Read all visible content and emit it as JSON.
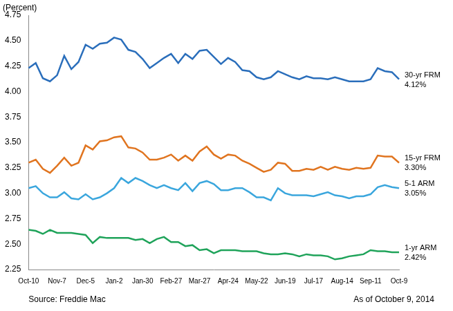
{
  "chart_data": {
    "type": "line",
    "y_label": "(Percent)",
    "annotations": [
      "Source: Freddie Mac",
      "As of October 9, 2014"
    ],
    "categories": [
      "Oct-10",
      null,
      null,
      null,
      "Nov-7",
      null,
      null,
      null,
      "Dec-5",
      null,
      null,
      null,
      "Jan-2",
      null,
      null,
      null,
      "Jan-30",
      null,
      null,
      null,
      "Feb-27",
      null,
      null,
      null,
      "Mar-27",
      null,
      null,
      null,
      "Apr-24",
      null,
      null,
      null,
      "May-22",
      null,
      null,
      null,
      "Jun-19",
      null,
      null,
      null,
      "Jul-17",
      null,
      null,
      null,
      "Aug-14",
      null,
      null,
      null,
      "Sep-11",
      null,
      null,
      null,
      "Oct-9"
    ],
    "series": [
      {
        "name": "30-yr FRM",
        "color": "#2a6ebb",
        "values": [
          4.23,
          4.28,
          4.13,
          4.1,
          4.16,
          4.35,
          4.22,
          4.29,
          4.46,
          4.42,
          4.47,
          4.48,
          4.53,
          4.51,
          4.41,
          4.39,
          4.32,
          4.23,
          4.28,
          4.33,
          4.37,
          4.28,
          4.37,
          4.32,
          4.4,
          4.41,
          4.34,
          4.27,
          4.33,
          4.29,
          4.21,
          4.2,
          4.14,
          4.12,
          4.14,
          4.2,
          4.17,
          4.14,
          4.12,
          4.15,
          4.13,
          4.13,
          4.12,
          4.14,
          4.12,
          4.1,
          4.1,
          4.1,
          4.12,
          4.23,
          4.2,
          4.19,
          4.12
        ],
        "value_labels": [
          null,
          null,
          null,
          null,
          null,
          null,
          null,
          null,
          null,
          null,
          null,
          null,
          null,
          null,
          null,
          null,
          null,
          null,
          null,
          null,
          null,
          null,
          null,
          null,
          null,
          null,
          null,
          null,
          null,
          null,
          null,
          null,
          null,
          null,
          null,
          null,
          null,
          null,
          null,
          null,
          null,
          null,
          null,
          null,
          null,
          null,
          null,
          null,
          null,
          null,
          null,
          null,
          "4.12%"
        ]
      },
      {
        "name": "15-yr FRM",
        "color": "#e0741f",
        "values": [
          3.3,
          3.33,
          3.24,
          3.2,
          3.27,
          3.35,
          3.27,
          3.3,
          3.47,
          3.43,
          3.51,
          3.52,
          3.55,
          3.56,
          3.45,
          3.44,
          3.4,
          3.33,
          3.33,
          3.35,
          3.38,
          3.32,
          3.37,
          3.32,
          3.41,
          3.46,
          3.38,
          3.34,
          3.38,
          3.37,
          3.32,
          3.29,
          3.25,
          3.21,
          3.23,
          3.3,
          3.29,
          3.22,
          3.22,
          3.24,
          3.23,
          3.26,
          3.23,
          3.26,
          3.24,
          3.23,
          3.25,
          3.24,
          3.25,
          3.37,
          3.36,
          3.36,
          3.3
        ],
        "value_labels": [
          null,
          null,
          null,
          null,
          null,
          null,
          null,
          null,
          null,
          null,
          null,
          null,
          null,
          null,
          null,
          null,
          null,
          null,
          null,
          null,
          null,
          null,
          null,
          null,
          null,
          null,
          null,
          null,
          null,
          null,
          null,
          null,
          null,
          null,
          null,
          null,
          null,
          null,
          null,
          null,
          null,
          null,
          null,
          null,
          null,
          null,
          null,
          null,
          null,
          null,
          null,
          null,
          "3.30%"
        ]
      },
      {
        "name": "5-1 ARM",
        "color": "#3aa6dd",
        "values": [
          3.05,
          3.07,
          3.0,
          2.96,
          2.96,
          3.01,
          2.95,
          2.94,
          2.99,
          2.94,
          2.96,
          3.0,
          3.05,
          3.15,
          3.1,
          3.15,
          3.12,
          3.08,
          3.05,
          3.08,
          3.05,
          3.03,
          3.1,
          3.02,
          3.1,
          3.12,
          3.09,
          3.03,
          3.03,
          3.05,
          3.05,
          3.01,
          2.96,
          2.96,
          2.93,
          3.05,
          3.0,
          2.98,
          2.98,
          2.98,
          2.97,
          2.99,
          3.01,
          2.98,
          2.97,
          2.95,
          2.97,
          2.97,
          2.99,
          3.06,
          3.08,
          3.06,
          3.05
        ],
        "value_labels": [
          null,
          null,
          null,
          null,
          null,
          null,
          null,
          null,
          null,
          null,
          null,
          null,
          null,
          null,
          null,
          null,
          null,
          null,
          null,
          null,
          null,
          null,
          null,
          null,
          null,
          null,
          null,
          null,
          null,
          null,
          null,
          null,
          null,
          null,
          null,
          null,
          null,
          null,
          null,
          null,
          null,
          null,
          null,
          null,
          null,
          null,
          null,
          null,
          null,
          null,
          null,
          null,
          "3.05%"
        ]
      },
      {
        "name": "1-yr ARM",
        "color": "#1fa35a",
        "values": [
          2.64,
          2.63,
          2.6,
          2.64,
          2.61,
          2.61,
          2.61,
          2.6,
          2.59,
          2.51,
          2.57,
          2.56,
          2.56,
          2.56,
          2.56,
          2.54,
          2.55,
          2.51,
          2.55,
          2.57,
          2.52,
          2.52,
          2.48,
          2.49,
          2.44,
          2.45,
          2.41,
          2.44,
          2.44,
          2.44,
          2.43,
          2.43,
          2.43,
          2.41,
          2.4,
          2.4,
          2.41,
          2.4,
          2.38,
          2.4,
          2.39,
          2.39,
          2.38,
          2.35,
          2.36,
          2.38,
          2.39,
          2.4,
          2.44,
          2.43,
          2.43,
          2.42,
          2.42
        ],
        "value_labels": [
          null,
          null,
          null,
          null,
          null,
          null,
          null,
          null,
          null,
          null,
          null,
          null,
          null,
          null,
          null,
          null,
          null,
          null,
          null,
          null,
          null,
          null,
          null,
          null,
          null,
          null,
          null,
          null,
          null,
          null,
          null,
          null,
          null,
          null,
          null,
          null,
          null,
          null,
          null,
          null,
          null,
          null,
          null,
          null,
          null,
          null,
          null,
          null,
          null,
          null,
          null,
          null,
          "2.42%"
        ]
      }
    ],
    "ylim": [
      2.25,
      4.75
    ],
    "yticks": [
      2.25,
      {
        "value": 2.5,
        "label": "2.50"
      },
      2.75,
      {
        "value": 3,
        "label": "3.00"
      },
      3.25,
      {
        "value": 3.5,
        "label": "3.50"
      },
      3.75,
      {
        "value": 4,
        "label": "4.00"
      },
      4.25,
      {
        "value": 4.5,
        "label": "4.50"
      },
      4.75
    ],
    "grid": false
  }
}
